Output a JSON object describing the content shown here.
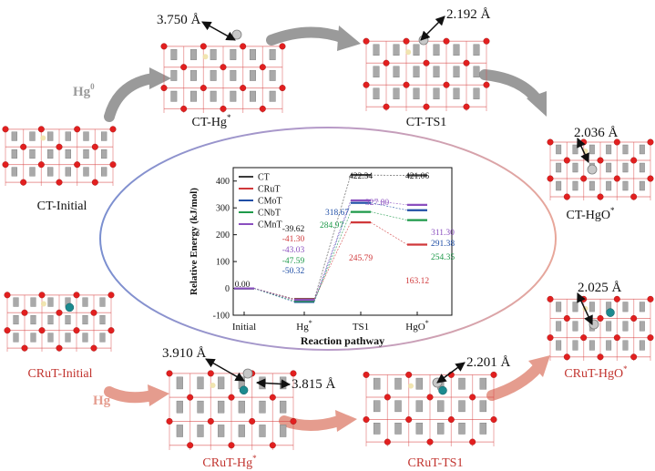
{
  "structures": {
    "ct_initial": "CT-Initial",
    "ct_hg": "CT-Hg",
    "ct_hg_sup": "*",
    "ct_ts1": "CT-TS1",
    "ct_hgo": "CT-HgO",
    "ct_hgo_sup": "*",
    "cru_initial": "CRuT-Initial",
    "cru_hg": "CRuT-Hg",
    "cru_hg_sup": "*",
    "cru_ts1": "CRuT-TS1",
    "cru_hgo": "CRuT-HgO",
    "cru_hgo_sup": "*"
  },
  "hg_label": "Hg",
  "hg_sup": "0",
  "distances": {
    "ct_hg": "3.750 Å",
    "ct_ts1": "2.192 Å",
    "ct_hgo": "2.036 Å",
    "cru_hgo": "2.025 Å",
    "cru_ts1": "2.201 Å",
    "cru_hg_a": "3.910 Å",
    "cru_hg_b": "3.815 Å"
  },
  "colors": {
    "CT": "#3a3a3a",
    "CRuT": "#d0383a",
    "CMoT": "#1f4ea6",
    "CNbT": "#1e9a4a",
    "CMnT": "#8a4fbf",
    "arrow_top": "#9a9a9a",
    "arrow_bottom": "#e59c8e"
  },
  "chart_data": {
    "type": "energy-profile",
    "xlabel": "Reaction pathway",
    "ylabel": "Relative Energy (kJ/mol)",
    "ylim": [
      -100,
      450
    ],
    "yticks": [
      "-100",
      "0",
      "100",
      "200",
      "300",
      "400"
    ],
    "categories": [
      "Initial",
      "Hg",
      "TS1",
      "HgO"
    ],
    "category_sups": [
      "",
      "*",
      "",
      "*"
    ],
    "legend_position": "top-left",
    "series": [
      {
        "name": "CT",
        "values": [
          0.0,
          -39.62,
          422.34,
          421.06
        ],
        "labels": [
          "0.00",
          "-39.62",
          "422.34",
          "421.06"
        ]
      },
      {
        "name": "CRuT",
        "values": [
          0.0,
          -41.3,
          245.79,
          163.12
        ],
        "labels": [
          "",
          "-41.30",
          "245.79",
          "163.12"
        ]
      },
      {
        "name": "CMoT",
        "values": [
          0.0,
          -50.32,
          318.67,
          291.38
        ],
        "labels": [
          "",
          "-50.32",
          "318.67",
          "291.38"
        ]
      },
      {
        "name": "CNbT",
        "values": [
          0.0,
          -47.59,
          284.97,
          254.35
        ],
        "labels": [
          "",
          "-47.59",
          "284.97",
          "254.35"
        ]
      },
      {
        "name": "CMnT",
        "values": [
          0.0,
          -43.03,
          327.8,
          311.3
        ],
        "labels": [
          "",
          "-43.03",
          "327.80",
          "311.30"
        ]
      }
    ]
  }
}
